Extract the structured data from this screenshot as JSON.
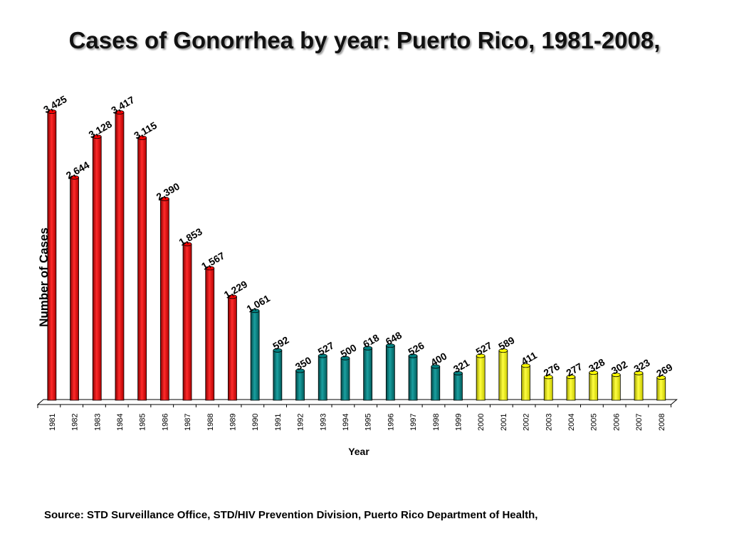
{
  "chart_data": {
    "type": "bar",
    "title": "Cases of Gonorrhea by year: Puerto Rico, 1981-2008,",
    "xlabel": "Year",
    "ylabel": "Number of Cases",
    "ylim": [
      0,
      3425
    ],
    "grid": false,
    "legend": "none",
    "categories": [
      "1981",
      "1982",
      "1983",
      "1984",
      "1985",
      "1986",
      "1987",
      "1988",
      "1989",
      "1990",
      "1991",
      "1992",
      "1993",
      "1994",
      "1995",
      "1996",
      "1997",
      "1998",
      "1999",
      "2000",
      "2001",
      "2002",
      "2003",
      "2004",
      "2005",
      "2006",
      "2007",
      "2008"
    ],
    "values": [
      3425,
      2644,
      3128,
      3417,
      3115,
      2390,
      1853,
      1567,
      1229,
      1061,
      592,
      350,
      527,
      500,
      618,
      648,
      526,
      400,
      321,
      527,
      589,
      411,
      276,
      277,
      328,
      302,
      323,
      269
    ],
    "data_labels": [
      "3,425",
      "2,644",
      "3,128",
      "3,417",
      "3,115",
      "2,390",
      "1,853",
      "1,567",
      "1,229",
      "1,061",
      "592",
      "350",
      "527",
      "500",
      "618",
      "648",
      "526",
      "400",
      "321",
      "527",
      "589",
      "411",
      "276",
      "277",
      "328",
      "302",
      "323",
      "269"
    ],
    "bar_colors": [
      "#ff0000",
      "#ff0000",
      "#ff0000",
      "#ff0000",
      "#ff0000",
      "#ff0000",
      "#ff0000",
      "#ff0000",
      "#ff0000",
      "#008080",
      "#008080",
      "#008080",
      "#008080",
      "#008080",
      "#008080",
      "#008080",
      "#008080",
      "#008080",
      "#008080",
      "#ffff00",
      "#ffff00",
      "#ffff00",
      "#ffff00",
      "#ffff00",
      "#ffff00",
      "#ffff00",
      "#ffff00",
      "#ffff00"
    ]
  },
  "source": "Source: STD Surveillance Office, STD/HIV Prevention Division, Puerto Rico Department of Health,"
}
